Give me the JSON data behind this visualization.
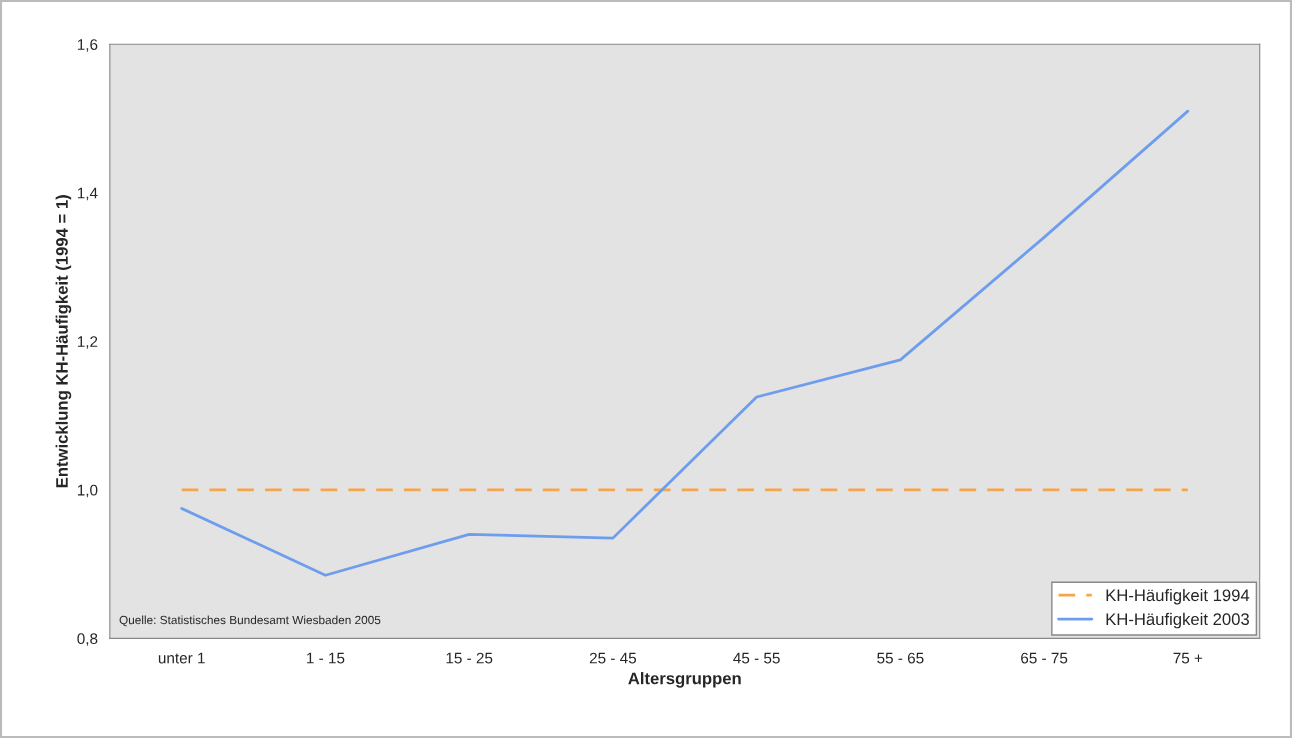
{
  "chart_data": {
    "type": "line",
    "xlabel": "Altersgruppen",
    "ylabel": "Entwicklung KH-Häufigkeit (1994 = 1)",
    "categories": [
      "unter 1",
      "1 - 15",
      "15 - 25",
      "25 - 45",
      "45 - 55",
      "55 - 65",
      "65 - 75",
      "75 +"
    ],
    "series": [
      {
        "name": "KH-Häufigkeit 1994",
        "color": "#f7a54c",
        "line_style": "dashed",
        "values": [
          1.0,
          1.0,
          1.0,
          1.0,
          1.0,
          1.0,
          1.0,
          1.0
        ]
      },
      {
        "name": "KH-Häufigkeit 2003",
        "color": "#6f9ded",
        "line_style": "solid",
        "values": [
          0.975,
          0.885,
          0.94,
          0.935,
          1.125,
          1.175,
          1.34,
          1.51
        ]
      }
    ],
    "ylim": [
      0.8,
      1.6
    ],
    "yticks": [
      {
        "value": 0.8,
        "label": "0,8"
      },
      {
        "value": 1.0,
        "label": "1,0"
      },
      {
        "value": 1.2,
        "label": "1,2"
      },
      {
        "value": 1.4,
        "label": "1,4"
      },
      {
        "value": 1.6,
        "label": "1,6"
      }
    ],
    "legend": "bottom right",
    "annotations": [
      "Quelle: Statistisches Bundesamt Wiesbaden 2005"
    ]
  }
}
